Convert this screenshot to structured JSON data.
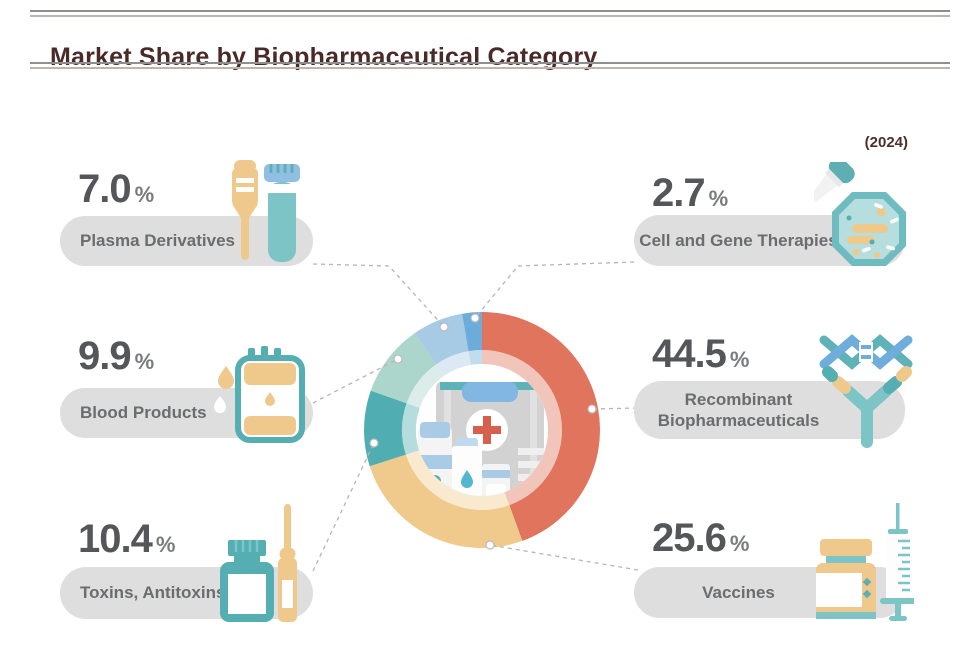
{
  "header": {
    "title": "Market Share by Biopharmaceutical Category",
    "year_label": "(2024)"
  },
  "cards": {
    "plasma": {
      "value": "7.0",
      "unit": "%",
      "label": "Plasma Derivatives"
    },
    "blood": {
      "value": "9.9",
      "unit": "%",
      "label": "Blood Products"
    },
    "toxins": {
      "value": "10.4",
      "unit": "%",
      "label": "Toxins, Antitoxins"
    },
    "cellgene": {
      "value": "2.7",
      "unit": "%",
      "label": "Cell and Gene Therapies"
    },
    "recombinant": {
      "value": "44.5",
      "unit": "%",
      "label_line1": "Recombinant",
      "label_line2": "Biopharmaceuticals"
    },
    "vaccines": {
      "value": "25.6",
      "unit": "%",
      "label": "Vaccines"
    }
  },
  "chart_data": {
    "type": "donut",
    "title": "Market Share by Biopharmaceutical Category",
    "year": "2024",
    "unit": "%",
    "start_angle_deg": 0,
    "direction": "clockwise",
    "segments": [
      {
        "key": "recombinant",
        "label": "Recombinant Biopharmaceuticals",
        "value": 44.5,
        "color": "#E0745C"
      },
      {
        "key": "vaccines",
        "label": "Vaccines",
        "value": 25.6,
        "color": "#F0CA8D"
      },
      {
        "key": "toxins",
        "label": "Toxins, Antitoxins",
        "value": 10.4,
        "color": "#50ADB1"
      },
      {
        "key": "blood",
        "label": "Blood Products",
        "value": 9.9,
        "color": "#ACD5CB"
      },
      {
        "key": "plasma",
        "label": "Plasma Derivatives",
        "value": 7.0,
        "color": "#A7CAE5"
      },
      {
        "key": "cellgene",
        "label": "Cell and Gene Therapies",
        "value": 2.7,
        "color": "#6CACDA"
      }
    ]
  },
  "theme": {
    "title_color": "#4A2A28",
    "pill_color": "#DEDEDE",
    "number_color": "#55565A",
    "percent_color": "#7A7B7E",
    "label_color": "#6B6C6E",
    "rule_dark": "#8F8F8F",
    "rule_light": "#BFB3AB",
    "connector_color": "#B5B5B5",
    "cross_red": "#D95F4D"
  }
}
